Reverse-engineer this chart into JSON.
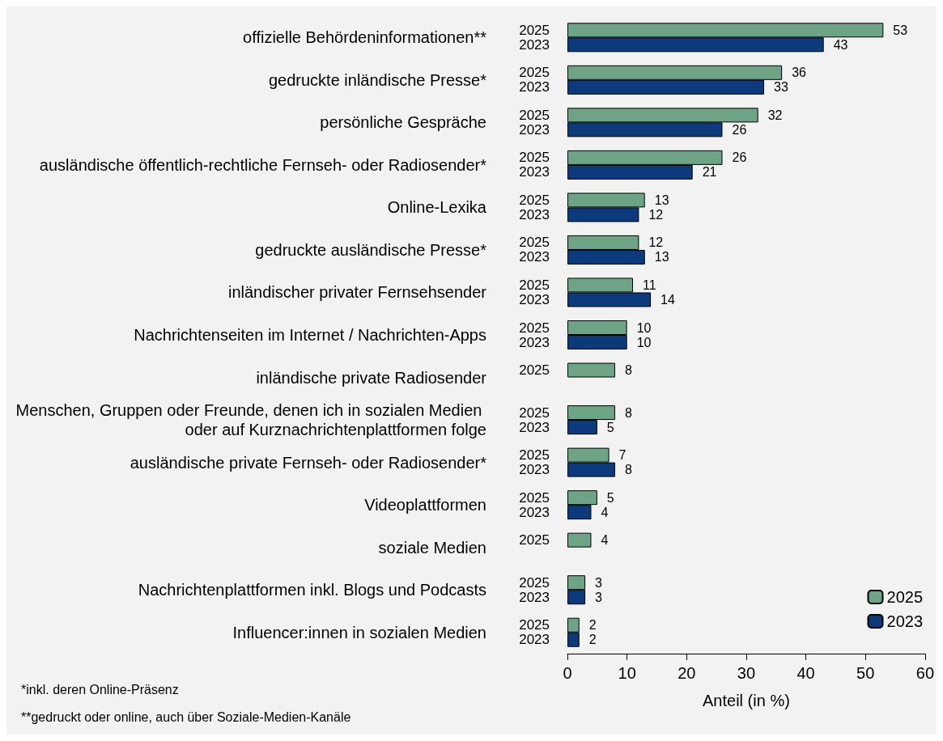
{
  "chart_data": {
    "type": "bar",
    "orientation": "horizontal",
    "xlabel": "Anteil (in %)",
    "categories": [
      "offizielle Behördeninformationen**",
      "gedruckte inländische Presse*",
      "persönliche Gespräche",
      "ausländische öffentlich-rechtliche Fernseh- oder Radiosender*",
      "Online-Lexika",
      "gedruckte ausländische Presse*",
      "inländischer privater Fernsehsender",
      "Nachrichtenseiten im Internet / Nachrichten-Apps",
      "inländische private Radiosender",
      "Menschen, Gruppen oder Freunde, denen ich in sozialen Medien oder auf Kurznachrichtenplattformen folge",
      "ausländische private Fernseh- oder Radiosender*",
      "Videoplattformen",
      "soziale Medien",
      "Nachrichtenplattformen inkl. Blogs und Podcasts",
      "Influencer:innen in sozialen Medien"
    ],
    "series": [
      {
        "name": "2025",
        "color": "#6fa386",
        "values": [
          53,
          36,
          32,
          26,
          13,
          12,
          11,
          10,
          8,
          8,
          7,
          5,
          4,
          3,
          2
        ]
      },
      {
        "name": "2023",
        "color": "#0d3a7a",
        "values": [
          43,
          33,
          26,
          21,
          12,
          13,
          14,
          10,
          null,
          5,
          8,
          4,
          null,
          3,
          2
        ]
      }
    ],
    "xlim": [
      0,
      60
    ],
    "xticks": [
      0,
      10,
      20,
      30,
      40,
      50,
      60
    ],
    "grid": false,
    "legend": "bottom right",
    "data_labels": true,
    "annotations": [
      "*inkl. deren Online-Präsenz",
      "**gedruckt oder online, auch über Soziale-Medien-Kanäle"
    ]
  }
}
